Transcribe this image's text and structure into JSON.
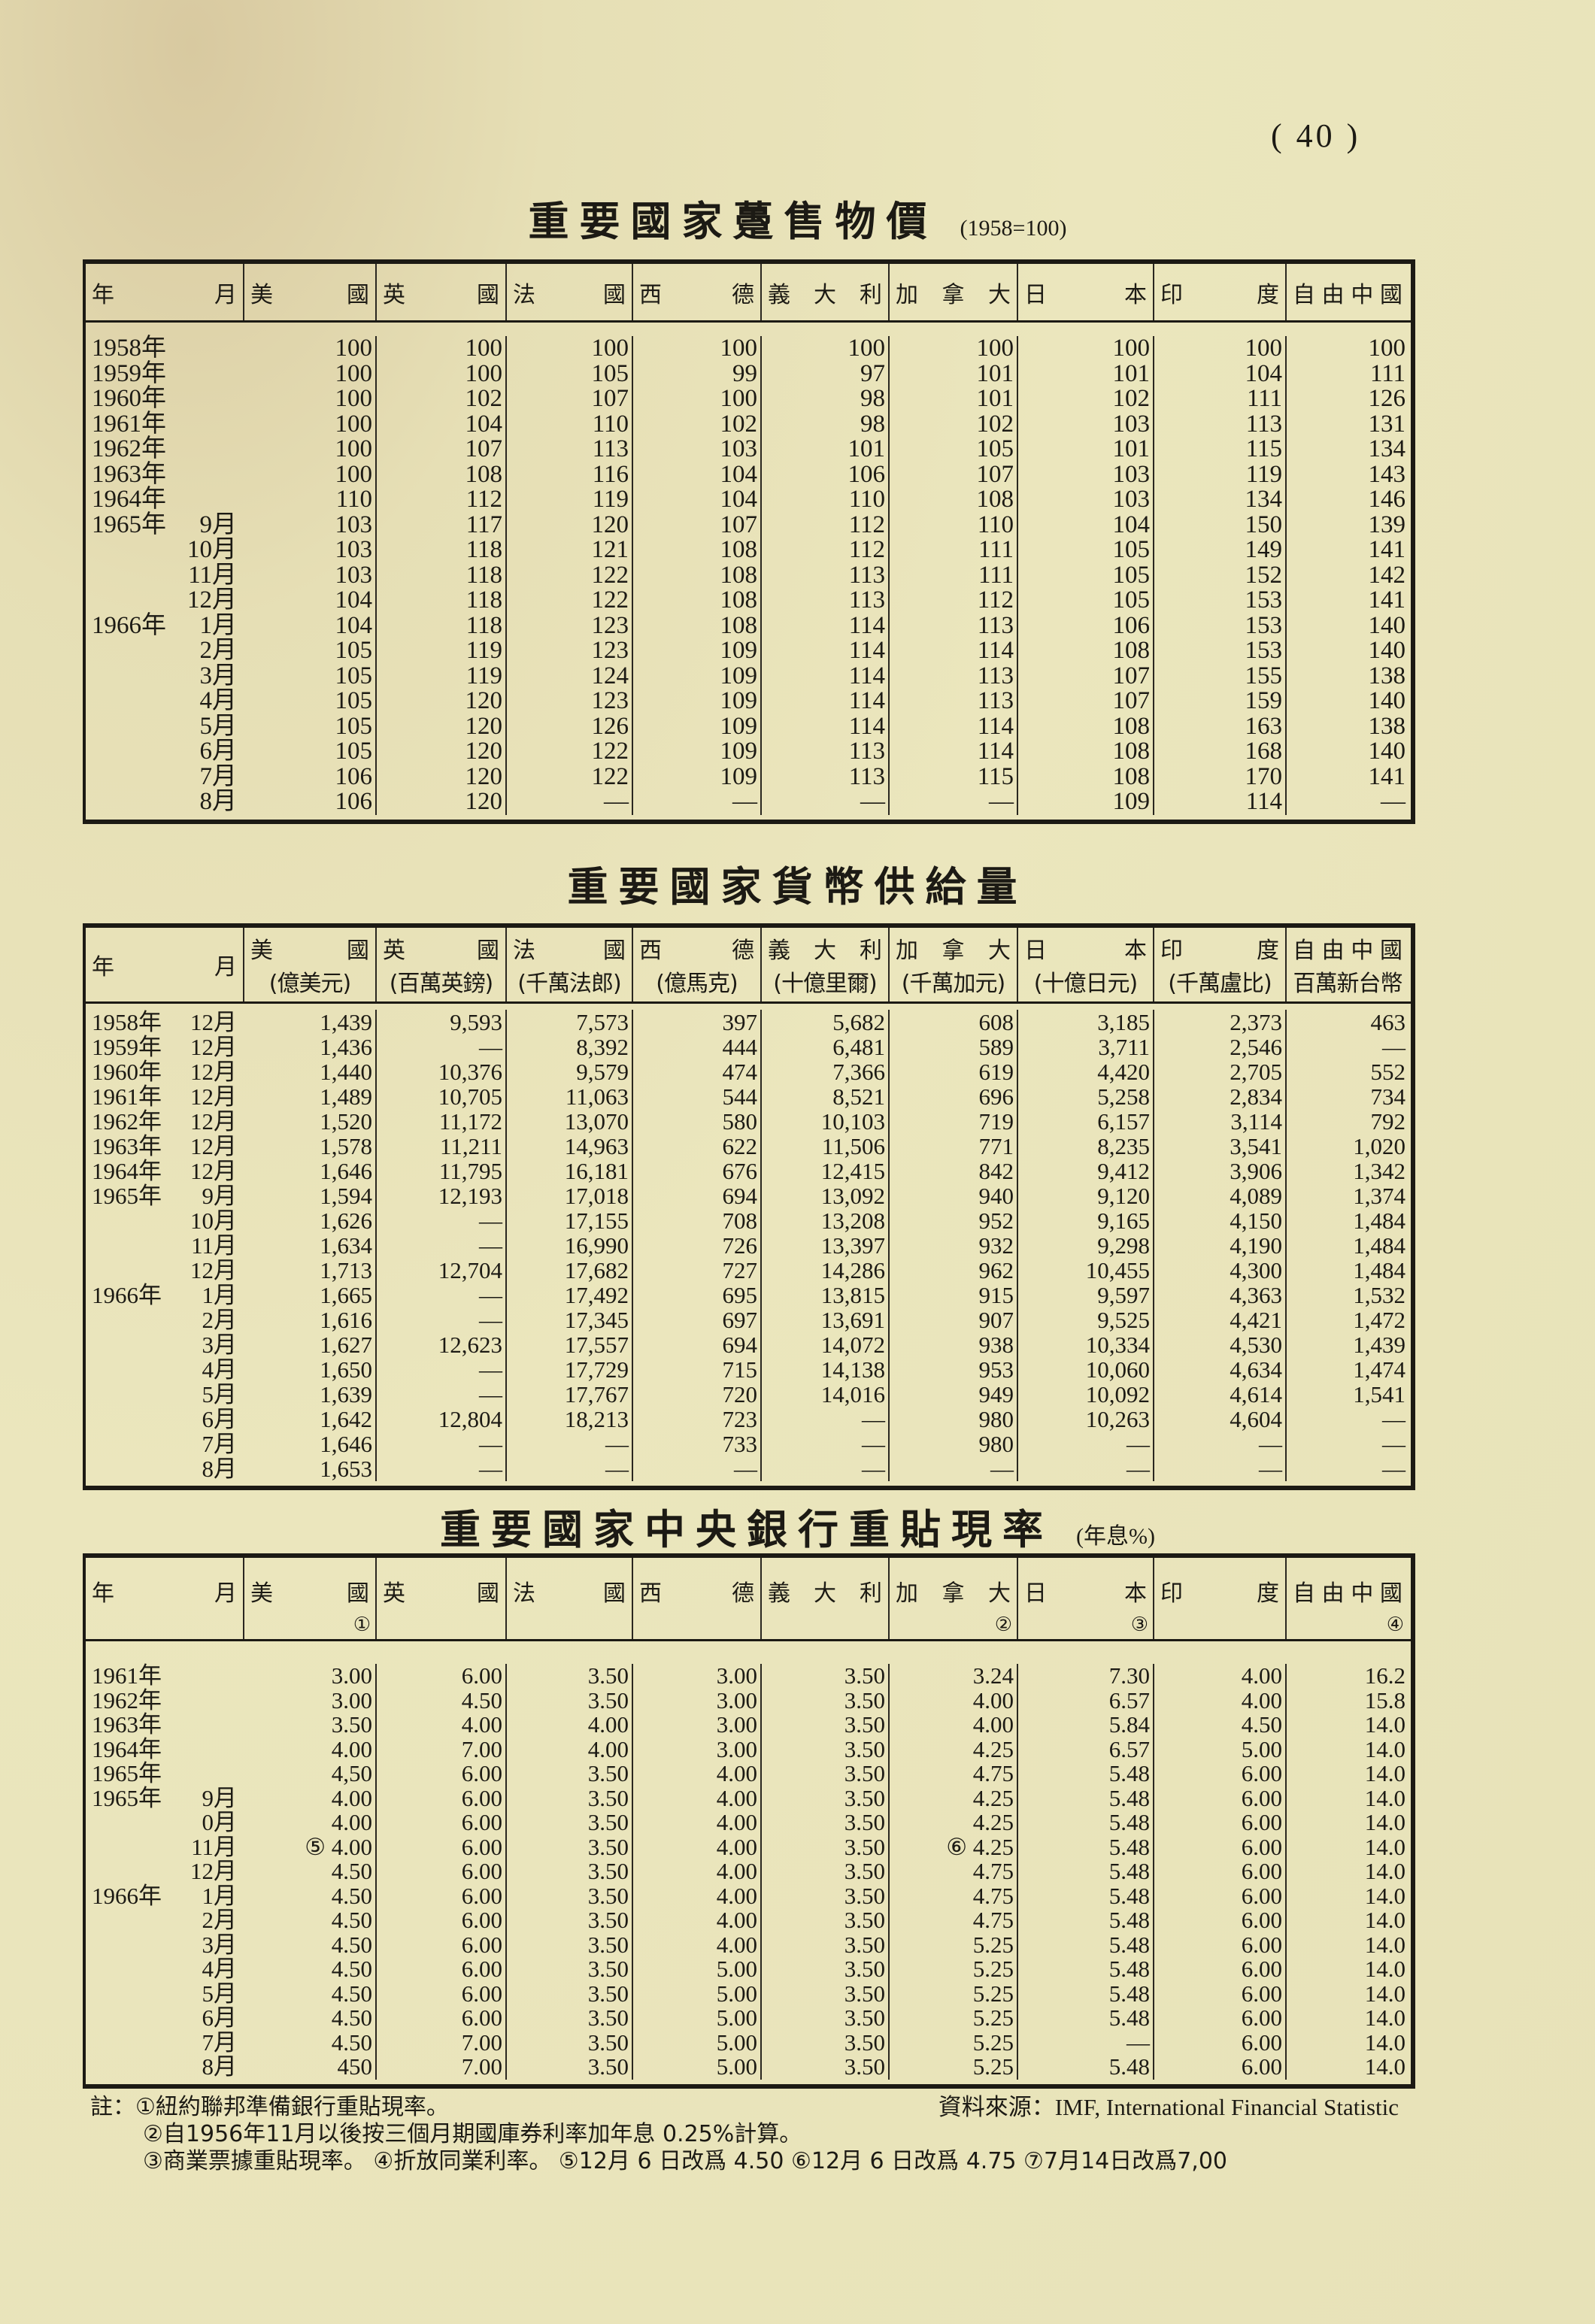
{
  "page_number": "( 40 )",
  "tables": [
    {
      "title": "重要國家躉售物價",
      "subtitle": "(1958=100)",
      "headers": [
        {
          "name": "年月"
        },
        {
          "name": "美國"
        },
        {
          "name": "英國"
        },
        {
          "name": "法國"
        },
        {
          "name": "西德"
        },
        {
          "name": "義大利"
        },
        {
          "name": "加拿大"
        },
        {
          "name": "日本"
        },
        {
          "name": "印度"
        },
        {
          "name": "自由中國"
        }
      ],
      "rows": [
        {
          "year": "1958年",
          "month": "",
          "values": [
            "100",
            "100",
            "100",
            "100",
            "100",
            "100",
            "100",
            "100",
            "100"
          ]
        },
        {
          "year": "1959年",
          "month": "",
          "values": [
            "100",
            "100",
            "105",
            "99",
            "97",
            "101",
            "101",
            "104",
            "111"
          ]
        },
        {
          "year": "1960年",
          "month": "",
          "values": [
            "100",
            "102",
            "107",
            "100",
            "98",
            "101",
            "102",
            "111",
            "126"
          ]
        },
        {
          "year": "1961年",
          "month": "",
          "values": [
            "100",
            "104",
            "110",
            "102",
            "98",
            "102",
            "103",
            "113",
            "131"
          ]
        },
        {
          "year": "1962年",
          "month": "",
          "values": [
            "100",
            "107",
            "113",
            "103",
            "101",
            "105",
            "101",
            "115",
            "134"
          ]
        },
        {
          "year": "1963年",
          "month": "",
          "values": [
            "100",
            "108",
            "116",
            "104",
            "106",
            "107",
            "103",
            "119",
            "143"
          ]
        },
        {
          "year": "1964年",
          "month": "",
          "values": [
            "110",
            "112",
            "119",
            "104",
            "110",
            "108",
            "103",
            "134",
            "146"
          ]
        },
        {
          "year": "1965年",
          "month": "9月",
          "values": [
            "103",
            "117",
            "120",
            "107",
            "112",
            "110",
            "104",
            "150",
            "139"
          ]
        },
        {
          "year": "",
          "month": "10月",
          "values": [
            "103",
            "118",
            "121",
            "108",
            "112",
            "111",
            "105",
            "149",
            "141"
          ]
        },
        {
          "year": "",
          "month": "11月",
          "values": [
            "103",
            "118",
            "122",
            "108",
            "113",
            "111",
            "105",
            "152",
            "142"
          ]
        },
        {
          "year": "",
          "month": "12月",
          "values": [
            "104",
            "118",
            "122",
            "108",
            "113",
            "112",
            "105",
            "153",
            "141"
          ]
        },
        {
          "year": "1966年",
          "month": "1月",
          "values": [
            "104",
            "118",
            "123",
            "108",
            "114",
            "113",
            "106",
            "153",
            "140"
          ]
        },
        {
          "year": "",
          "month": "2月",
          "values": [
            "105",
            "119",
            "123",
            "109",
            "114",
            "114",
            "108",
            "153",
            "140"
          ]
        },
        {
          "year": "",
          "month": "3月",
          "values": [
            "105",
            "119",
            "124",
            "109",
            "114",
            "113",
            "107",
            "155",
            "138"
          ]
        },
        {
          "year": "",
          "month": "4月",
          "values": [
            "105",
            "120",
            "123",
            "109",
            "114",
            "113",
            "107",
            "159",
            "140"
          ]
        },
        {
          "year": "",
          "month": "5月",
          "values": [
            "105",
            "120",
            "126",
            "109",
            "114",
            "114",
            "108",
            "163",
            "138"
          ]
        },
        {
          "year": "",
          "month": "6月",
          "values": [
            "105",
            "120",
            "122",
            "109",
            "113",
            "114",
            "108",
            "168",
            "140"
          ]
        },
        {
          "year": "",
          "month": "7月",
          "values": [
            "106",
            "120",
            "122",
            "109",
            "113",
            "115",
            "108",
            "170",
            "141"
          ]
        },
        {
          "year": "",
          "month": "8月",
          "values": [
            "106",
            "120",
            "—",
            "—",
            "—",
            "—",
            "109",
            "114",
            "—"
          ]
        }
      ]
    },
    {
      "title": "重要國家貨幣供給量",
      "subtitle": "",
      "headers": [
        {
          "name": "年月"
        },
        {
          "name": "美國",
          "unit": "(億美元)"
        },
        {
          "name": "英國",
          "unit": "(百萬英鎊)"
        },
        {
          "name": "法國",
          "unit": "(千萬法郎)"
        },
        {
          "name": "西德",
          "unit": "(億馬克)"
        },
        {
          "name": "義大利",
          "unit": "(十億里爾)"
        },
        {
          "name": "加拿大",
          "unit": "(千萬加元)"
        },
        {
          "name": "日本",
          "unit": "(十億日元)"
        },
        {
          "name": "印度",
          "unit": "(千萬盧比)"
        },
        {
          "name": "自由中國",
          "unit": "百萬新台幣"
        }
      ],
      "rows": [
        {
          "year": "1958年",
          "month": "12月",
          "values": [
            "1,439",
            "9,593",
            "7,573",
            "397",
            "5,682",
            "608",
            "3,185",
            "2,373",
            "463"
          ]
        },
        {
          "year": "1959年",
          "month": "12月",
          "values": [
            "1,436",
            "—",
            "8,392",
            "444",
            "6,481",
            "589",
            "3,711",
            "2,546",
            "—"
          ]
        },
        {
          "year": "1960年",
          "month": "12月",
          "values": [
            "1,440",
            "10,376",
            "9,579",
            "474",
            "7,366",
            "619",
            "4,420",
            "2,705",
            "552"
          ]
        },
        {
          "year": "1961年",
          "month": "12月",
          "values": [
            "1,489",
            "10,705",
            "11,063",
            "544",
            "8,521",
            "696",
            "5,258",
            "2,834",
            "734"
          ]
        },
        {
          "year": "1962年",
          "month": "12月",
          "values": [
            "1,520",
            "11,172",
            "13,070",
            "580",
            "10,103",
            "719",
            "6,157",
            "3,114",
            "792"
          ]
        },
        {
          "year": "1963年",
          "month": "12月",
          "values": [
            "1,578",
            "11,211",
            "14,963",
            "622",
            "11,506",
            "771",
            "8,235",
            "3,541",
            "1,020"
          ]
        },
        {
          "year": "1964年",
          "month": "12月",
          "values": [
            "1,646",
            "11,795",
            "16,181",
            "676",
            "12,415",
            "842",
            "9,412",
            "3,906",
            "1,342"
          ]
        },
        {
          "year": "1965年",
          "month": "9月",
          "values": [
            "1,594",
            "12,193",
            "17,018",
            "694",
            "13,092",
            "940",
            "9,120",
            "4,089",
            "1,374"
          ]
        },
        {
          "year": "",
          "month": "10月",
          "values": [
            "1,626",
            "—",
            "17,155",
            "708",
            "13,208",
            "952",
            "9,165",
            "4,150",
            "1,484"
          ]
        },
        {
          "year": "",
          "month": "11月",
          "values": [
            "1,634",
            "—",
            "16,990",
            "726",
            "13,397",
            "932",
            "9,298",
            "4,190",
            "1,484"
          ]
        },
        {
          "year": "",
          "month": "12月",
          "values": [
            "1,713",
            "12,704",
            "17,682",
            "727",
            "14,286",
            "962",
            "10,455",
            "4,300",
            "1,484"
          ]
        },
        {
          "year": "1966年",
          "month": "1月",
          "values": [
            "1,665",
            "—",
            "17,492",
            "695",
            "13,815",
            "915",
            "9,597",
            "4,363",
            "1,532"
          ]
        },
        {
          "year": "",
          "month": "2月",
          "values": [
            "1,616",
            "—",
            "17,345",
            "697",
            "13,691",
            "907",
            "9,525",
            "4,421",
            "1,472"
          ]
        },
        {
          "year": "",
          "month": "3月",
          "values": [
            "1,627",
            "12,623",
            "17,557",
            "694",
            "14,072",
            "938",
            "10,334",
            "4,530",
            "1,439"
          ]
        },
        {
          "year": "",
          "month": "4月",
          "values": [
            "1,650",
            "—",
            "17,729",
            "715",
            "14,138",
            "953",
            "10,060",
            "4,634",
            "1,474"
          ]
        },
        {
          "year": "",
          "month": "5月",
          "values": [
            "1,639",
            "—",
            "17,767",
            "720",
            "14,016",
            "949",
            "10,092",
            "4,614",
            "1,541"
          ]
        },
        {
          "year": "",
          "month": "6月",
          "values": [
            "1,642",
            "12,804",
            "18,213",
            "723",
            "—",
            "980",
            "10,263",
            "4,604",
            "—"
          ]
        },
        {
          "year": "",
          "month": "7月",
          "values": [
            "1,646",
            "—",
            "—",
            "733",
            "—",
            "980",
            "—",
            "—",
            "—"
          ]
        },
        {
          "year": "",
          "month": "8月",
          "values": [
            "1,653",
            "—",
            "—",
            "—",
            "—",
            "—",
            "—",
            "—",
            "—"
          ]
        }
      ]
    },
    {
      "title": "重要國家中央銀行重貼現率",
      "subtitle": "(年息%)",
      "headers": [
        {
          "name": "年月"
        },
        {
          "name": "美國",
          "note": "①"
        },
        {
          "name": "英國"
        },
        {
          "name": "法國"
        },
        {
          "name": "西德"
        },
        {
          "name": "義大利"
        },
        {
          "name": "加拿大",
          "note": "②"
        },
        {
          "name": "日本",
          "note": "③"
        },
        {
          "name": "印度"
        },
        {
          "name": "自由中國",
          "note": "④"
        }
      ],
      "rows": [
        {
          "year": "1961年",
          "month": "",
          "values": [
            "3.00",
            "6.00",
            "3.50",
            "3.00",
            "3.50",
            "3.24",
            "7.30",
            "4.00",
            "16.2"
          ]
        },
        {
          "year": "1962年",
          "month": "",
          "values": [
            "3.00",
            "4.50",
            "3.50",
            "3.00",
            "3.50",
            "4.00",
            "6.57",
            "4.00",
            "15.8"
          ]
        },
        {
          "year": "1963年",
          "month": "",
          "values": [
            "3.50",
            "4.00",
            "4.00",
            "3.00",
            "3.50",
            "4.00",
            "5.84",
            "4.50",
            "14.0"
          ]
        },
        {
          "year": "1964年",
          "month": "",
          "values": [
            "4.00",
            "7.00",
            "4.00",
            "3.00",
            "3.50",
            "4.25",
            "6.57",
            "5.00",
            "14.0"
          ]
        },
        {
          "year": "1965年",
          "month": "",
          "values": [
            "4,50",
            "6.00",
            "3.50",
            "4.00",
            "3.50",
            "4.75",
            "5.48",
            "6.00",
            "14.0"
          ]
        },
        {
          "year": "1965年",
          "month": "9月",
          "values": [
            "4.00",
            "6.00",
            "3.50",
            "4.00",
            "3.50",
            "4.25",
            "5.48",
            "6.00",
            "14.0"
          ]
        },
        {
          "year": "",
          "month": "0月",
          "values": [
            "4.00",
            "6.00",
            "3.50",
            "4.00",
            "3.50",
            "4.25",
            "5.48",
            "6.00",
            "14.0"
          ]
        },
        {
          "year": "",
          "month": "11月",
          "values": [
            "⑤ 4.00",
            "6.00",
            "3.50",
            "4.00",
            "3.50",
            "⑥ 4.25",
            "5.48",
            "6.00",
            "14.0"
          ]
        },
        {
          "year": "",
          "month": "12月",
          "values": [
            "4.50",
            "6.00",
            "3.50",
            "4.00",
            "3.50",
            "4.75",
            "5.48",
            "6.00",
            "14.0"
          ]
        },
        {
          "year": "1966年",
          "month": "1月",
          "values": [
            "4.50",
            "6.00",
            "3.50",
            "4.00",
            "3.50",
            "4.75",
            "5.48",
            "6.00",
            "14.0"
          ]
        },
        {
          "year": "",
          "month": "2月",
          "values": [
            "4.50",
            "6.00",
            "3.50",
            "4.00",
            "3.50",
            "4.75",
            "5.48",
            "6.00",
            "14.0"
          ]
        },
        {
          "year": "",
          "month": "3月",
          "values": [
            "4.50",
            "6.00",
            "3.50",
            "4.00",
            "3.50",
            "5.25",
            "5.48",
            "6.00",
            "14.0"
          ]
        },
        {
          "year": "",
          "month": "4月",
          "values": [
            "4.50",
            "6.00",
            "3.50",
            "5.00",
            "3.50",
            "5.25",
            "5.48",
            "6.00",
            "14.0"
          ]
        },
        {
          "year": "",
          "month": "5月",
          "values": [
            "4.50",
            "6.00",
            "3.50",
            "5.00",
            "3.50",
            "5.25",
            "5.48",
            "6.00",
            "14.0"
          ]
        },
        {
          "year": "",
          "month": "6月",
          "values": [
            "4.50",
            "6.00",
            "3.50",
            "5.00",
            "3.50",
            "5.25",
            "5.48",
            "6.00",
            "14.0"
          ]
        },
        {
          "year": "",
          "month": "7月",
          "values": [
            "4.50",
            "7.00",
            "3.50",
            "5.00",
            "3.50",
            "5.25",
            "—",
            "6.00",
            "14.0"
          ]
        },
        {
          "year": "",
          "month": "8月",
          "values": [
            "450",
            "7.00",
            "3.50",
            "5.00",
            "3.50",
            "5.25",
            "5.48",
            "6.00",
            "14.0"
          ]
        }
      ]
    }
  ],
  "notes": {
    "lines": [
      "註：①紐約聯邦準備銀行重貼現率。",
      "②自1956年11月以後按三個月期國庫券利率加年息 0.25%計算。",
      "③商業票據重貼現率。 ④折放同業利率。 ⑤12月 6 日改爲 4.50  ⑥12月 6 日改爲 4.75  ⑦7月14日改爲7,00"
    ],
    "source": "資料來源：IMF, International Financial Statistic"
  }
}
